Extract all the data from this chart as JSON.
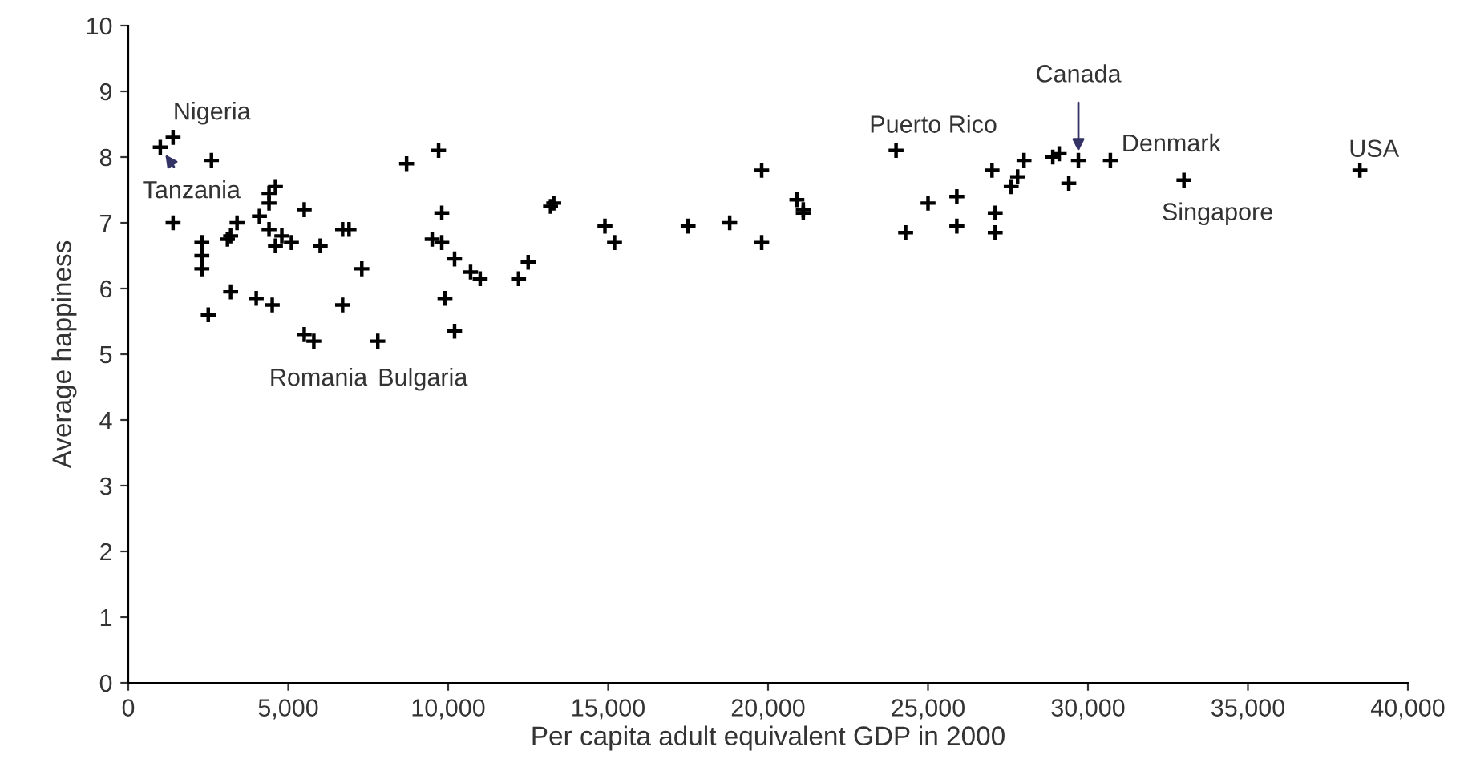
{
  "chart_data": {
    "type": "scatter",
    "xlabel": "Per capita adult equivalent GDP in 2000",
    "ylabel": "Average happiness",
    "x": [
      1000,
      1400,
      2600,
      1400,
      2300,
      2300,
      2300,
      3100,
      3200,
      3400,
      4100,
      4400,
      4400,
      4600,
      4400,
      4600,
      4800,
      5100,
      5500,
      6000,
      6700,
      6900,
      7300,
      3200,
      2500,
      4000,
      4500,
      5500,
      5800,
      6700,
      7800,
      8700,
      9700,
      9800,
      9500,
      9800,
      10200,
      10700,
      11000,
      9900,
      10200,
      12200,
      12500,
      13200,
      13300,
      14900,
      15200,
      17500,
      18800,
      19800,
      19800,
      20900,
      21100,
      21100,
      24000,
      24300,
      25000,
      25900,
      25900,
      27000,
      27100,
      27100,
      27600,
      27800,
      28000,
      28900,
      29100,
      29400,
      29700,
      30700,
      33000,
      38500
    ],
    "values": [
      8.15,
      8.3,
      7.95,
      7.0,
      6.7,
      6.5,
      6.3,
      6.75,
      6.8,
      7.0,
      7.1,
      7.3,
      7.45,
      7.55,
      6.9,
      6.65,
      6.8,
      6.7,
      7.2,
      6.65,
      6.9,
      6.9,
      6.3,
      5.95,
      5.6,
      5.85,
      5.75,
      5.3,
      5.2,
      5.75,
      5.2,
      7.9,
      8.1,
      7.15,
      6.75,
      6.7,
      6.45,
      6.25,
      6.15,
      5.85,
      5.35,
      6.15,
      6.4,
      7.25,
      7.3,
      6.95,
      6.7,
      6.95,
      7.0,
      7.8,
      6.7,
      7.35,
      7.15,
      7.2,
      8.1,
      6.85,
      7.3,
      7.4,
      6.95,
      7.8,
      7.15,
      6.85,
      7.55,
      7.7,
      7.95,
      8.0,
      8.05,
      7.6,
      7.95,
      7.95,
      7.65,
      7.8
    ],
    "color": "#000000",
    "marker": "cross",
    "xlim": [
      0,
      40000
    ],
    "ylim": [
      0,
      10
    ],
    "xticks": [
      {
        "value": 0,
        "label": "0"
      },
      {
        "value": 5000,
        "label": "5,000"
      },
      {
        "value": 10000,
        "label": "10,000"
      },
      {
        "value": 15000,
        "label": "15,000"
      },
      {
        "value": 20000,
        "label": "20,000"
      },
      {
        "value": 25000,
        "label": "25,000"
      },
      {
        "value": 30000,
        "label": "30,000"
      },
      {
        "value": 35000,
        "label": "35,000"
      },
      {
        "value": 40000,
        "label": "40,000"
      }
    ],
    "yticks": [
      0,
      1,
      2,
      3,
      4,
      5,
      6,
      7,
      8,
      9,
      10
    ],
    "grid": false,
    "annotations": [
      {
        "text": "Nigeria",
        "x": 1400,
        "y": 8.3
      },
      {
        "text": "Tanzania",
        "x": 1000,
        "y": 8.15
      },
      {
        "text": "Romania",
        "x": 5800,
        "y": 5.2
      },
      {
        "text": "Bulgaria",
        "x": 7800,
        "y": 5.2
      },
      {
        "text": "Puerto Rico",
        "x": 24000,
        "y": 8.1
      },
      {
        "text": "Canada",
        "x": 29700,
        "y": 7.95
      },
      {
        "text": "Denmark",
        "x": 30700,
        "y": 7.95
      },
      {
        "text": "Singapore",
        "x": 33000,
        "y": 7.65
      },
      {
        "text": "USA",
        "x": 38500,
        "y": 7.8
      }
    ]
  }
}
